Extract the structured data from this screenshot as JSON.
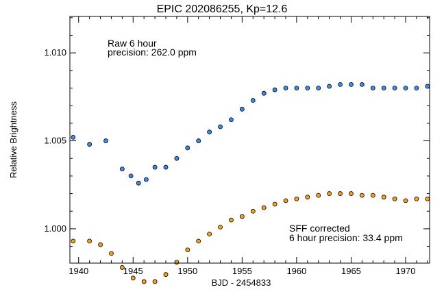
{
  "chart_data": {
    "type": "scatter",
    "title": "EPIC 202086255, Kp=12.6",
    "xlabel": "BJD - 2454833",
    "ylabel": "Relative Brightness",
    "xlim": [
      1939.2,
      1972.2
    ],
    "ylim": [
      0.99805,
      1.01207
    ],
    "x_ticks": [
      1940,
      1945,
      1950,
      1955,
      1960,
      1965,
      1970
    ],
    "x_tick_labels": [
      "1940",
      "1945",
      "1950",
      "1955",
      "1960",
      "1965",
      "1970"
    ],
    "y_ticks": [
      1.0,
      1.005,
      1.01
    ],
    "y_tick_labels": [
      "1.000",
      "1.005",
      "1.010"
    ],
    "grid": false,
    "series": [
      {
        "marker_color": "#3c8ee6",
        "x": [
          1939.5,
          1941.0,
          1942.5,
          1944.0,
          1944.8,
          1945.5,
          1946.2,
          1947.0,
          1948.0,
          1949.0,
          1950.0,
          1951.0,
          1952.0,
          1953.0,
          1954.0,
          1955.0,
          1956.0,
          1957.0,
          1958.0,
          1959.0,
          1960.0,
          1961.0,
          1962.0,
          1963.0,
          1964.0,
          1965.0,
          1966.0,
          1967.0,
          1968.0,
          1969.0,
          1970.0,
          1971.0,
          1972.0
        ],
        "y": [
          1.0052,
          1.0048,
          1.005,
          1.0034,
          1.003,
          1.0026,
          1.0028,
          1.0035,
          1.0035,
          1.004,
          1.0046,
          1.005,
          1.0055,
          1.0058,
          1.0062,
          1.0068,
          1.0073,
          1.0077,
          1.0079,
          1.008,
          1.008,
          1.008,
          1.008,
          1.0081,
          1.0082,
          1.0082,
          1.0082,
          1.008,
          1.008,
          1.008,
          1.008,
          1.008,
          1.0081
        ]
      },
      {
        "marker_color": "#f5a21e",
        "x": [
          1939.5,
          1941.0,
          1942.0,
          1943.0,
          1944.0,
          1945.0,
          1946.0,
          1947.0,
          1948.0,
          1949.0,
          1950.0,
          1951.0,
          1952.0,
          1953.0,
          1954.0,
          1955.0,
          1956.0,
          1957.0,
          1958.0,
          1959.0,
          1960.0,
          1961.0,
          1962.0,
          1963.0,
          1964.0,
          1965.0,
          1966.0,
          1967.0,
          1968.0,
          1969.0,
          1970.0,
          1971.0,
          1972.0
        ],
        "y": [
          0.9993,
          0.9993,
          0.9991,
          0.9986,
          0.9978,
          0.9972,
          0.997,
          0.997,
          0.9974,
          0.9981,
          0.9988,
          0.9993,
          0.9997,
          1.0001,
          1.0005,
          1.0007,
          1.001,
          1.0012,
          1.0014,
          1.0016,
          1.0017,
          1.0018,
          1.0019,
          1.002,
          1.002,
          1.002,
          1.0019,
          1.0019,
          1.0018,
          1.0017,
          1.0016,
          1.0017,
          1.0017
        ]
      }
    ],
    "annotations": [
      {
        "line1": "Raw 6 hour",
        "line2": "precision: 262.0 ppm"
      },
      {
        "line1": "SFF corrected",
        "line2": "6 hour precision: 33.4 ppm"
      }
    ]
  }
}
